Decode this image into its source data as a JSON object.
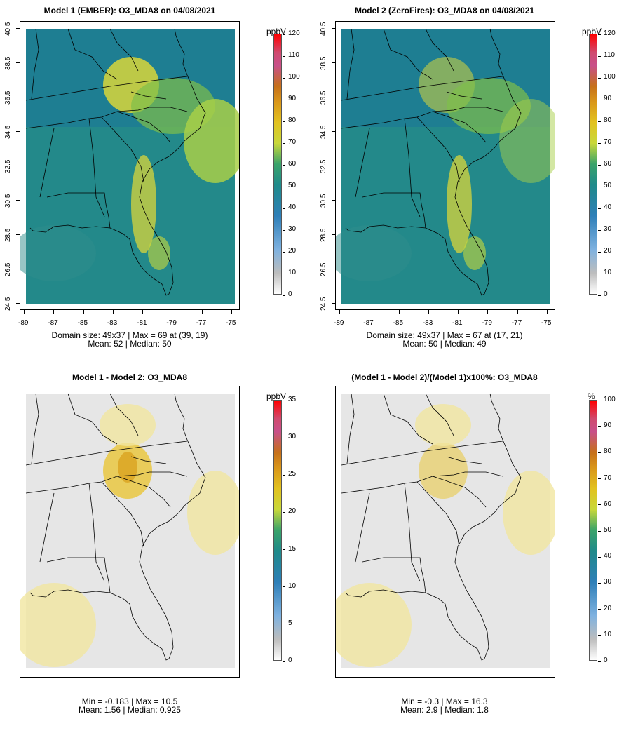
{
  "panels": [
    {
      "id": "p1",
      "title": "Model 1 (EMBER): O3_MDA8 on 04/08/2021",
      "stats_line1": "Domain size: 49x37 | Max = 69 at (39, 19)",
      "stats_line2": "Mean: 52 |  Median: 50",
      "colorbar_title": "ppbV",
      "colorbar_ticks": [
        "0",
        "10",
        "20",
        "30",
        "40",
        "50",
        "60",
        "70",
        "80",
        "90",
        "100",
        "110",
        "120"
      ],
      "colorbar_max": 120,
      "x_ticks": [
        "-89",
        "-87",
        "-85",
        "-83",
        "-81",
        "-79",
        "-77",
        "-75"
      ],
      "y_ticks": [
        "24.5",
        "26.5",
        "28.5",
        "30.5",
        "32.5",
        "34.5",
        "36.5",
        "38.5",
        "40.5"
      ],
      "scheme": "abs"
    },
    {
      "id": "p2",
      "title": "Model 2 (ZeroFires): O3_MDA8 on 04/08/2021",
      "stats_line1": "Domain size: 49x37 | Max = 67 at (17, 21)",
      "stats_line2": "Mean: 50 |  Median: 49",
      "colorbar_title": "ppbV",
      "colorbar_ticks": [
        "0",
        "10",
        "20",
        "30",
        "40",
        "50",
        "60",
        "70",
        "80",
        "90",
        "100",
        "110",
        "120"
      ],
      "colorbar_max": 120,
      "x_ticks": [
        "-89",
        "-87",
        "-85",
        "-83",
        "-81",
        "-79",
        "-77",
        "-75"
      ],
      "y_ticks": [
        "24.5",
        "26.5",
        "28.5",
        "30.5",
        "32.5",
        "34.5",
        "36.5",
        "38.5",
        "40.5"
      ],
      "scheme": "abs"
    },
    {
      "id": "p3",
      "title": "Model 1 - Model 2: O3_MDA8",
      "stats_line1": "Min = -0.183 | Max = 10.5",
      "stats_line2": "Mean: 1.56 |  Median: 0.925",
      "colorbar_title": "ppbV",
      "colorbar_ticks": [
        "0",
        "5",
        "10",
        "15",
        "20",
        "25",
        "30",
        "35"
      ],
      "colorbar_max": 35,
      "x_ticks": [],
      "y_ticks": [],
      "scheme": "diff"
    },
    {
      "id": "p4",
      "title": "(Model 1 - Model 2)/(Model 1)x100%: O3_MDA8",
      "stats_line1": "Min = -0.3 | Max = 16.3",
      "stats_line2": "Mean: 2.9 |  Median: 1.8",
      "colorbar_title": "%",
      "colorbar_ticks": [
        "0",
        "10",
        "20",
        "30",
        "40",
        "50",
        "60",
        "70",
        "80",
        "90",
        "100"
      ],
      "colorbar_max": 100,
      "x_ticks": [],
      "y_ticks": [],
      "scheme": "diff"
    }
  ],
  "colors": {
    "abs_ocean": "#1f7f8a",
    "abs_land": "#2a8c86",
    "abs_high": "#d9d63a",
    "diff_bg": "#e6e6e6",
    "diff_low": "#f1e6a0",
    "diff_mid": "#e9c94a",
    "diff_high": "#d9a21f"
  }
}
